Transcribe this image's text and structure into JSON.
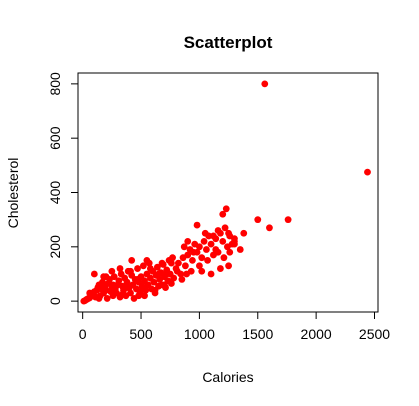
{
  "chart_data": {
    "type": "scatter",
    "title": "Scatterplot",
    "xlabel": "Calories",
    "ylabel": "Cholesterol",
    "xlim": [
      -40,
      2530
    ],
    "ylim": [
      -40,
      840
    ],
    "xticks": [
      0,
      500,
      1000,
      1500,
      2000,
      2500
    ],
    "yticks": [
      0,
      200,
      400,
      600,
      800
    ],
    "grid": false,
    "point_color": "#ff0000",
    "points": [
      [
        10,
        0
      ],
      [
        20,
        2
      ],
      [
        30,
        5
      ],
      [
        40,
        8
      ],
      [
        50,
        10
      ],
      [
        60,
        12
      ],
      [
        70,
        20
      ],
      [
        80,
        25
      ],
      [
        90,
        30
      ],
      [
        100,
        35
      ],
      [
        110,
        15
      ],
      [
        120,
        40
      ],
      [
        130,
        50
      ],
      [
        140,
        60
      ],
      [
        150,
        20
      ],
      [
        160,
        45
      ],
      [
        170,
        70
      ],
      [
        180,
        30
      ],
      [
        190,
        55
      ],
      [
        200,
        40
      ],
      [
        210,
        10
      ],
      [
        220,
        65
      ],
      [
        230,
        80
      ],
      [
        240,
        35
      ],
      [
        250,
        50
      ],
      [
        260,
        20
      ],
      [
        270,
        90
      ],
      [
        280,
        45
      ],
      [
        290,
        30
      ],
      [
        300,
        60
      ],
      [
        310,
        75
      ],
      [
        320,
        15
      ],
      [
        330,
        100
      ],
      [
        340,
        55
      ],
      [
        350,
        40
      ],
      [
        360,
        85
      ],
      [
        370,
        20
      ],
      [
        380,
        70
      ],
      [
        390,
        110
      ],
      [
        400,
        50
      ],
      [
        410,
        30
      ],
      [
        420,
        95
      ],
      [
        430,
        60
      ],
      [
        440,
        10
      ],
      [
        450,
        80
      ],
      [
        460,
        45
      ],
      [
        470,
        120
      ],
      [
        480,
        70
      ],
      [
        490,
        35
      ],
      [
        500,
        90
      ],
      [
        510,
        55
      ],
      [
        520,
        130
      ],
      [
        530,
        75
      ],
      [
        540,
        40
      ],
      [
        550,
        100
      ],
      [
        560,
        60
      ],
      [
        570,
        140
      ],
      [
        580,
        85
      ],
      [
        590,
        45
      ],
      [
        600,
        110
      ],
      [
        610,
        70
      ],
      [
        620,
        30
      ],
      [
        630,
        95
      ],
      [
        640,
        125
      ],
      [
        650,
        55
      ],
      [
        660,
        80
      ],
      [
        670,
        105
      ],
      [
        680,
        60
      ],
      [
        690,
        135
      ],
      [
        700,
        90
      ],
      [
        710,
        50
      ],
      [
        720,
        115
      ],
      [
        730,
        75
      ],
      [
        740,
        150
      ],
      [
        750,
        100
      ],
      [
        760,
        65
      ],
      [
        770,
        160
      ],
      [
        780,
        85
      ],
      [
        800,
        120
      ],
      [
        820,
        140
      ],
      [
        840,
        100
      ],
      [
        860,
        160
      ],
      [
        880,
        130
      ],
      [
        900,
        170
      ],
      [
        920,
        190
      ],
      [
        940,
        150
      ],
      [
        960,
        210
      ],
      [
        980,
        180
      ],
      [
        1000,
        200
      ],
      [
        1020,
        160
      ],
      [
        1040,
        220
      ],
      [
        1060,
        190
      ],
      [
        1080,
        240
      ],
      [
        1100,
        210
      ],
      [
        1120,
        170
      ],
      [
        1140,
        230
      ],
      [
        1160,
        180
      ],
      [
        1180,
        250
      ],
      [
        1200,
        220
      ],
      [
        1220,
        270
      ],
      [
        1240,
        200
      ],
      [
        1260,
        240
      ],
      [
        1280,
        210
      ],
      [
        1300,
        230
      ],
      [
        1350,
        190
      ],
      [
        1380,
        250
      ],
      [
        1150,
        180
      ],
      [
        1180,
        120
      ],
      [
        1200,
        320
      ],
      [
        1250,
        250
      ],
      [
        980,
        280
      ],
      [
        1050,
        250
      ],
      [
        1100,
        100
      ],
      [
        1230,
        340
      ],
      [
        1300,
        220
      ],
      [
        1500,
        300
      ],
      [
        1560,
        800
      ],
      [
        1600,
        270
      ],
      [
        1760,
        300
      ],
      [
        2440,
        475
      ],
      [
        100,
        100
      ],
      [
        180,
        90
      ],
      [
        250,
        110
      ],
      [
        320,
        120
      ],
      [
        380,
        50
      ],
      [
        420,
        150
      ],
      [
        480,
        20
      ],
      [
        550,
        150
      ],
      [
        620,
        40
      ],
      [
        680,
        140
      ],
      [
        720,
        100
      ],
      [
        850,
        80
      ],
      [
        870,
        200
      ],
      [
        930,
        110
      ],
      [
        950,
        180
      ],
      [
        1020,
        110
      ],
      [
        1070,
        150
      ],
      [
        1120,
        240
      ],
      [
        1160,
        260
      ],
      [
        1250,
        130
      ],
      [
        60,
        30
      ],
      [
        140,
        10
      ],
      [
        200,
        90
      ],
      [
        260,
        60
      ],
      [
        340,
        25
      ],
      [
        410,
        110
      ],
      [
        470,
        80
      ],
      [
        530,
        20
      ],
      [
        580,
        120
      ],
      [
        650,
        100
      ],
      [
        700,
        60
      ],
      [
        760,
        140
      ],
      [
        810,
        110
      ],
      [
        890,
        100
      ],
      [
        1000,
        130
      ],
      [
        900,
        220
      ],
      [
        1140,
        190
      ],
      [
        1210,
        160
      ],
      [
        1260,
        180
      ],
      [
        1300,
        210
      ]
    ]
  }
}
